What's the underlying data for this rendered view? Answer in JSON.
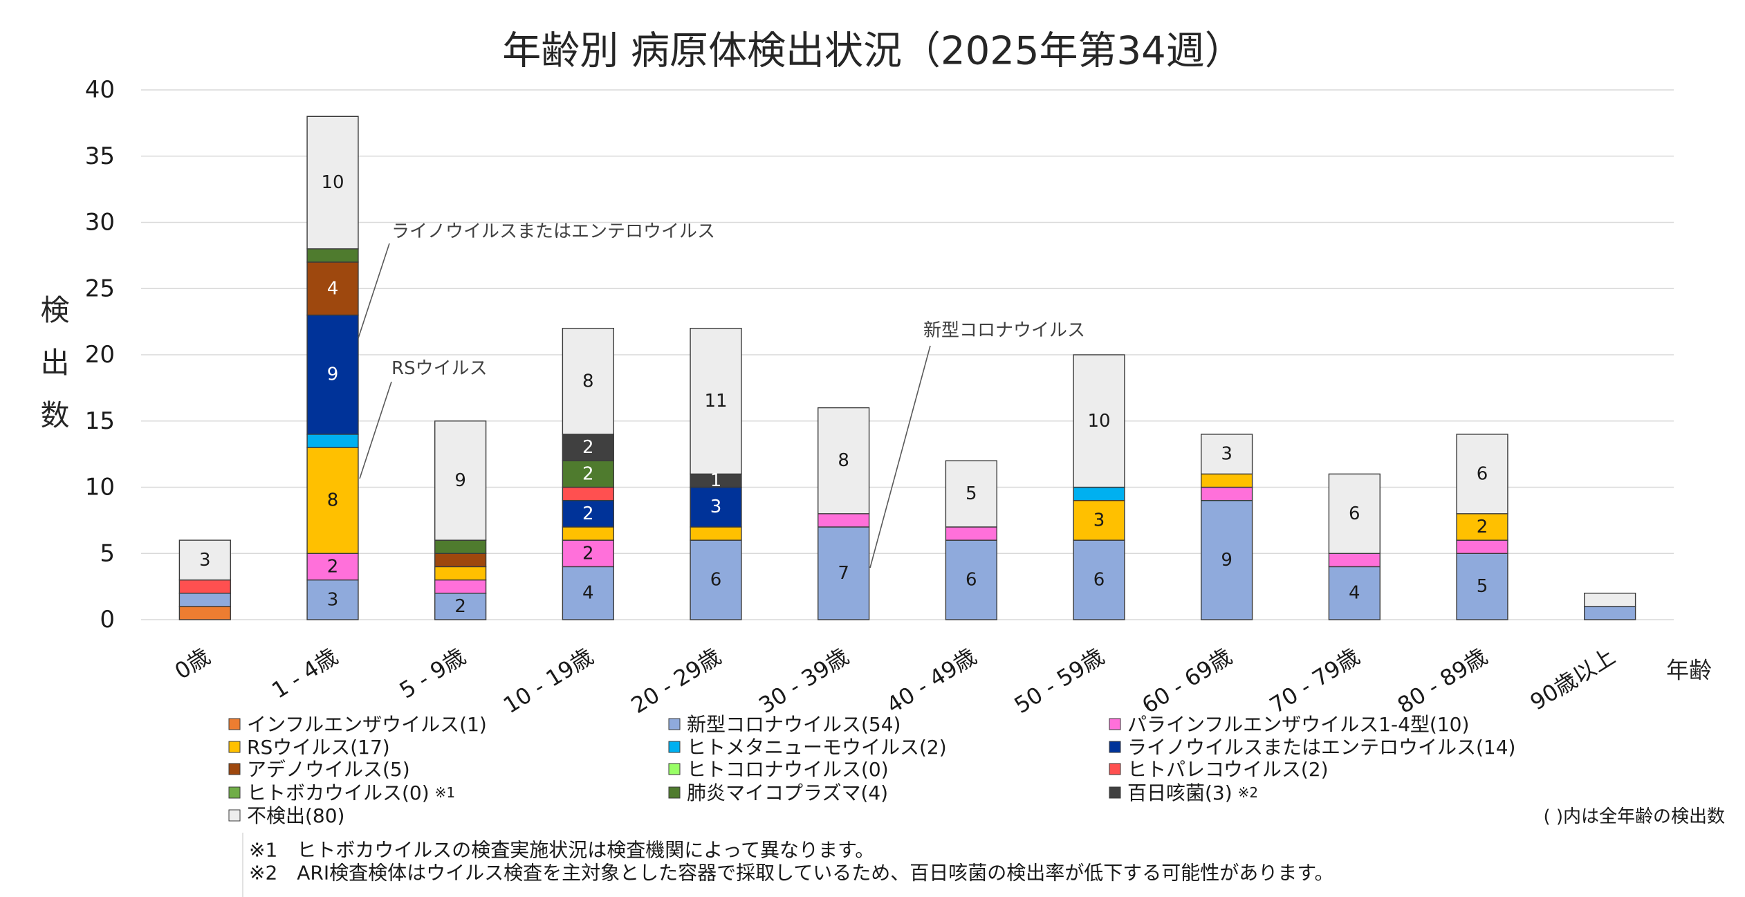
{
  "chart_data": {
    "type": "bar",
    "stacked": true,
    "title": "年齢別 病原体検出状況（2025年第34週）",
    "xlabel": "年齢",
    "ylabel": "検出数",
    "ylim": [
      0,
      40
    ],
    "yticks": [
      0,
      5,
      10,
      15,
      20,
      25,
      30,
      35,
      40
    ],
    "grid": true,
    "legend_position": "bottom",
    "categories": [
      "0歳",
      "1 - 4歳",
      "5 - 9歳",
      "10 - 19歳",
      "20 - 29歳",
      "30 - 39歳",
      "40 - 49歳",
      "50 - 59歳",
      "60 - 69歳",
      "70 - 79歳",
      "80 - 89歳",
      "90歳以上"
    ],
    "series": [
      {
        "name": "インフルエンザウイルス(1)",
        "color": "#ED7D31",
        "label_color": "#1A1A1A",
        "values": [
          1,
          0,
          0,
          0,
          0,
          0,
          0,
          0,
          0,
          0,
          0,
          0
        ]
      },
      {
        "name": "新型コロナウイルス(54)",
        "color": "#8FAADC",
        "label_color": "#1A1A1A",
        "values": [
          1,
          3,
          2,
          4,
          6,
          7,
          6,
          6,
          9,
          4,
          5,
          1
        ],
        "labels": [
          null,
          3,
          2,
          4,
          6,
          7,
          6,
          6,
          9,
          4,
          5,
          null
        ]
      },
      {
        "name": "パラインフルエンザウイルス1-4型(10)",
        "color": "#FF70DA",
        "label_color": "#1A1A1A",
        "values": [
          0,
          2,
          1,
          2,
          0,
          1,
          1,
          0,
          1,
          1,
          1,
          0
        ],
        "labels": [
          null,
          2,
          null,
          2,
          null,
          null,
          null,
          null,
          null,
          null,
          null,
          null
        ]
      },
      {
        "name": "RSウイルス(17)",
        "color": "#FFC000",
        "label_color": "#1A1A1A",
        "values": [
          0,
          8,
          1,
          1,
          1,
          0,
          0,
          3,
          1,
          0,
          2,
          0
        ],
        "labels": [
          null,
          8,
          null,
          null,
          null,
          null,
          null,
          3,
          null,
          null,
          2,
          null
        ]
      },
      {
        "name": "ヒトメタニューモウイルス(2)",
        "color": "#00B0F0",
        "label_color": "#1A1A1A",
        "values": [
          0,
          1,
          0,
          0,
          0,
          0,
          0,
          1,
          0,
          0,
          0,
          0
        ]
      },
      {
        "name": "ライノウイルスまたはエンテロウイルス(14)",
        "color": "#003399",
        "label_color": "#FFFFFF",
        "values": [
          0,
          9,
          0,
          2,
          3,
          0,
          0,
          0,
          0,
          0,
          0,
          0
        ],
        "labels": [
          null,
          9,
          null,
          2,
          3,
          null,
          null,
          null,
          null,
          null,
          null,
          null
        ]
      },
      {
        "name": "アデノウイルス(5)",
        "color": "#9E480E",
        "label_color": "#FFFFFF",
        "values": [
          0,
          4,
          1,
          0,
          0,
          0,
          0,
          0,
          0,
          0,
          0,
          0
        ],
        "labels": [
          null,
          4,
          null,
          null,
          null,
          null,
          null,
          null,
          null,
          null,
          null,
          null
        ]
      },
      {
        "name": "ヒトコロナウイルス(0)",
        "color": "#99FF66",
        "label_color": "#1A1A1A",
        "values": [
          0,
          0,
          0,
          0,
          0,
          0,
          0,
          0,
          0,
          0,
          0,
          0
        ]
      },
      {
        "name": "ヒトパレコウイルス(2)",
        "color": "#FF5050",
        "label_color": "#1A1A1A",
        "values": [
          1,
          0,
          0,
          1,
          0,
          0,
          0,
          0,
          0,
          0,
          0,
          0
        ]
      },
      {
        "name": "ヒトボカウイルス(0)",
        "note_mark": "※1",
        "color": "#70AD47",
        "label_color": "#1A1A1A",
        "values": [
          0,
          0,
          0,
          0,
          0,
          0,
          0,
          0,
          0,
          0,
          0,
          0
        ]
      },
      {
        "name": "肺炎マイコプラズマ(4)",
        "color": "#4F7B2E",
        "label_color": "#FFFFFF",
        "values": [
          0,
          1,
          1,
          2,
          0,
          0,
          0,
          0,
          0,
          0,
          0,
          0
        ],
        "labels": [
          null,
          null,
          null,
          2,
          null,
          null,
          null,
          null,
          null,
          null,
          null,
          null
        ]
      },
      {
        "name": "百日咳菌(3)",
        "note_mark": "※2",
        "color": "#404040",
        "label_color": "#FFFFFF",
        "values": [
          0,
          0,
          0,
          2,
          1,
          0,
          0,
          0,
          0,
          0,
          0,
          0
        ],
        "labels": [
          null,
          null,
          null,
          2,
          1,
          null,
          null,
          null,
          null,
          null,
          null,
          null
        ]
      },
      {
        "name": "不検出(80)",
        "color": "#EDEDED",
        "label_color": "#1A1A1A",
        "values": [
          3,
          10,
          9,
          8,
          11,
          8,
          5,
          10,
          3,
          6,
          6,
          1
        ],
        "labels": [
          3,
          10,
          9,
          8,
          11,
          8,
          5,
          10,
          3,
          6,
          6,
          null
        ]
      }
    ],
    "annotations": [
      {
        "text": "ライノウイルスまたはエンテロウイルス"
      },
      {
        "text": "RSウイルス"
      },
      {
        "text": "新型コロナウイルス"
      }
    ],
    "legend_note": "( )内は全年齢の検出数",
    "footnotes": [
      "※1　ヒトボカウイルスの検査実施状況は検査機関によって異なります。",
      "※2　ARI検査検体はウイルス検査を主対象とした容器で採取しているため、百日咳菌の検出率が低下する可能性があります。"
    ]
  }
}
